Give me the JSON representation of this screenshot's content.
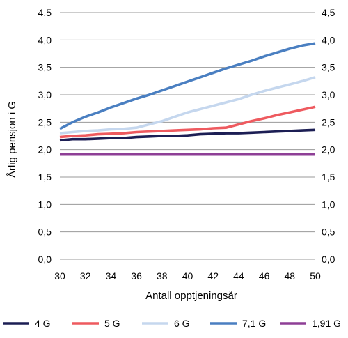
{
  "chart_data": {
    "type": "line",
    "xlabel": "Antall opptjeningsår",
    "ylabel": "Årlig pensjon i G",
    "xlim": [
      30,
      50
    ],
    "ylim": [
      0,
      4.5
    ],
    "x_ticks": [
      "30",
      "32",
      "34",
      "36",
      "38",
      "40",
      "42",
      "44",
      "46",
      "48",
      "50"
    ],
    "y_ticks": [
      "0,0",
      "0,5",
      "1,0",
      "1,5",
      "2,0",
      "2,5",
      "3,0",
      "3,5",
      "4,0",
      "4,5"
    ],
    "grid": "horizontal",
    "legend_position": "bottom",
    "x": [
      30,
      31,
      32,
      33,
      34,
      35,
      36,
      37,
      38,
      39,
      40,
      41,
      42,
      43,
      44,
      45,
      46,
      47,
      48,
      49,
      50
    ],
    "series": [
      {
        "name": "4 G",
        "color": "#1c1e54",
        "values": [
          2.17,
          2.19,
          2.19,
          2.2,
          2.21,
          2.21,
          2.23,
          2.24,
          2.25,
          2.25,
          2.26,
          2.28,
          2.29,
          2.3,
          2.3,
          2.31,
          2.32,
          2.33,
          2.34,
          2.35,
          2.36
        ]
      },
      {
        "name": "5 G",
        "color": "#ee5a5f",
        "values": [
          2.23,
          2.25,
          2.26,
          2.28,
          2.29,
          2.3,
          2.32,
          2.33,
          2.34,
          2.35,
          2.36,
          2.37,
          2.39,
          2.4,
          2.46,
          2.52,
          2.57,
          2.63,
          2.68,
          2.73,
          2.78
        ]
      },
      {
        "name": "6 G",
        "color": "#c5d7ee",
        "values": [
          2.3,
          2.32,
          2.34,
          2.35,
          2.37,
          2.38,
          2.4,
          2.46,
          2.52,
          2.6,
          2.68,
          2.74,
          2.8,
          2.86,
          2.92,
          3.0,
          3.07,
          3.13,
          3.19,
          3.25,
          3.32
        ]
      },
      {
        "name": "7,1 G",
        "color": "#4a7fc1",
        "values": [
          2.38,
          2.5,
          2.6,
          2.68,
          2.77,
          2.85,
          2.93,
          3.0,
          3.08,
          3.16,
          3.24,
          3.32,
          3.4,
          3.48,
          3.55,
          3.62,
          3.7,
          3.77,
          3.84,
          3.9,
          3.94
        ]
      },
      {
        "name": "1,91 G",
        "color": "#8e3f96",
        "values": [
          1.91,
          1.91,
          1.91,
          1.91,
          1.91,
          1.91,
          1.91,
          1.91,
          1.91,
          1.91,
          1.91,
          1.91,
          1.91,
          1.91,
          1.91,
          1.91,
          1.91,
          1.91,
          1.91,
          1.91,
          1.91
        ]
      }
    ]
  }
}
